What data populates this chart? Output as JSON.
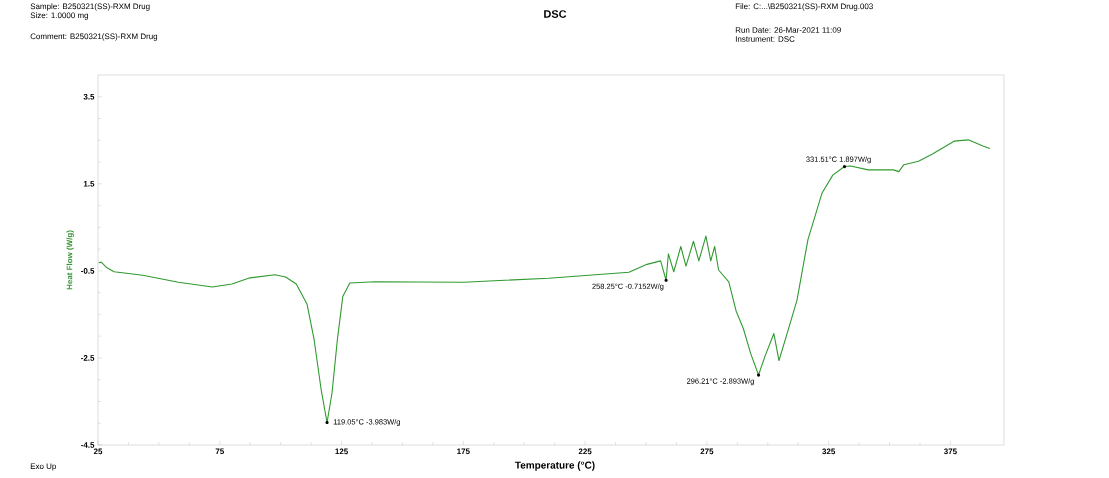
{
  "chart_data": {
    "type": "line",
    "title": "DSC",
    "annotations": [
      "Sample: B250321(SS)-RXM Drug",
      "Size:  1.0000 mg",
      "Comment: B250321(SS)-RXM Drug",
      "File: C:...\\B250321(SS)-RXM Drug.003",
      "Run Date: 26-Mar-2021 11:09",
      "Instrument: DSC",
      "Exo Up",
      {
        "text": "119.05°C -3.983W/g",
        "x": 119.05,
        "y": -3.983
      },
      {
        "text": "258.25°C -0.7152W/g",
        "x": 258.25,
        "y": -0.7152
      },
      {
        "text": "296.21°C -2.893W/g",
        "x": 296.21,
        "y": -2.893
      },
      {
        "text": "331.51°C 1.897W/g",
        "x": 331.51,
        "y": 1.897
      }
    ],
    "xlabel": "Temperature (°C)",
    "ylabel": "Heat Flow (W/g)",
    "x": [
      25.3,
      26.3,
      28.7,
      31.6,
      43.4,
      58,
      72,
      80,
      87.4,
      97.7,
      102,
      106.4,
      110.8,
      113.7,
      116.6,
      119.05,
      121.1,
      123.3,
      125.5,
      128.4,
      138.7,
      175.2,
      210,
      243,
      250.4,
      256,
      258.25,
      259.2,
      261.4,
      264.3,
      266.4,
      269.5,
      271.7,
      274.6,
      276.6,
      278.2,
      279.8,
      284,
      287,
      290,
      293,
      296.21,
      298.8,
      302.5,
      304.6,
      309,
      312,
      316.5,
      322.3,
      326.7,
      331.51,
      334,
      341.3,
      351.6,
      353.8,
      355.9,
      361.9,
      367.8,
      376.5,
      382.4,
      388.3,
      391.2
    ],
    "values": [
      -0.31,
      -0.3,
      -0.43,
      -0.52,
      -0.6,
      -0.76,
      -0.87,
      -0.8,
      -0.66,
      -0.59,
      -0.64,
      -0.8,
      -1.26,
      -2.07,
      -3.22,
      -3.983,
      -3.3,
      -2.07,
      -1.09,
      -0.78,
      -0.75,
      -0.76,
      -0.67,
      -0.53,
      -0.35,
      -0.27,
      -0.7152,
      -0.11,
      -0.52,
      0.06,
      -0.39,
      0.18,
      -0.27,
      0.3,
      -0.27,
      0.06,
      -0.48,
      -0.75,
      -1.42,
      -1.83,
      -2.4,
      -2.893,
      -2.47,
      -1.94,
      -2.56,
      -1.74,
      -1.17,
      0.22,
      1.29,
      1.7,
      1.897,
      1.91,
      1.82,
      1.82,
      1.78,
      1.94,
      2.02,
      2.19,
      2.48,
      2.51,
      2.37,
      2.31
    ],
    "color": "#2f9a2f",
    "xlim": [
      25,
      397
    ],
    "ylim": [
      -4.5,
      4.0
    ],
    "xticks": [
      25,
      75,
      125,
      175,
      225,
      275,
      325,
      375
    ],
    "yticks": [
      3.5,
      1.5,
      -0.5,
      -2.5,
      -4.5
    ]
  }
}
